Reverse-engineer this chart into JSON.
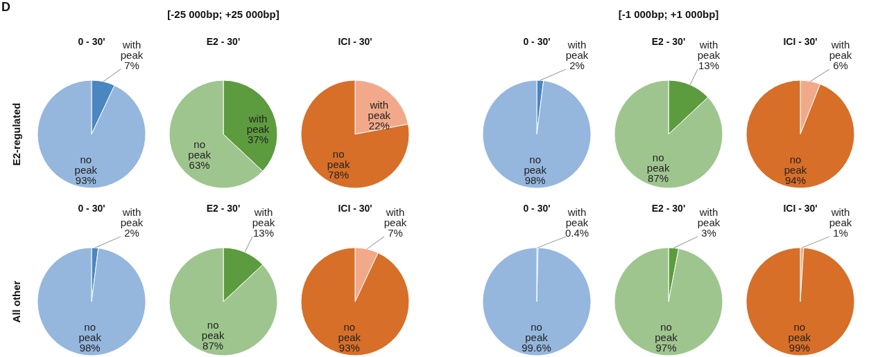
{
  "chart_data": [
    {
      "type": "pie",
      "title": "0 - 30'",
      "ylabel": "E2-regulated",
      "annotations": [
        "D"
      ],
      "categories": [
        "with peak",
        "no peak"
      ],
      "values": [
        7,
        93
      ],
      "value_labels": [
        "7%",
        "93%"
      ],
      "colors": [
        "#4a86c0",
        "#95b7de"
      ]
    },
    {
      "type": "pie",
      "title": "E2 - 30'",
      "subtitle": "[-25 000bp; +25 000bp]",
      "categories": [
        "with peak",
        "no peak"
      ],
      "values": [
        37,
        63
      ],
      "value_labels": [
        "37%",
        "63%"
      ],
      "colors": [
        "#5c9c3e",
        "#9fc58f"
      ]
    },
    {
      "type": "pie",
      "title": "ICI - 30'",
      "categories": [
        "with peak",
        "no peak"
      ],
      "values": [
        22,
        78
      ],
      "value_labels": [
        "22%",
        "78%"
      ],
      "colors": [
        "#f2a98a",
        "#d76f28"
      ]
    },
    {
      "type": "pie",
      "title": "0 - 30'",
      "categories": [
        "with peak",
        "no peak"
      ],
      "values": [
        2,
        98
      ],
      "value_labels": [
        "2%",
        "98%"
      ],
      "colors": [
        "#4a86c0",
        "#95b7de"
      ]
    },
    {
      "type": "pie",
      "title": "E2 - 30'",
      "subtitle": "[-1 000bp; +1 000bp]",
      "categories": [
        "with peak",
        "no peak"
      ],
      "values": [
        13,
        87
      ],
      "value_labels": [
        "13%",
        "87%"
      ],
      "colors": [
        "#5c9c3e",
        "#9fc58f"
      ]
    },
    {
      "type": "pie",
      "title": "ICI - 30'",
      "categories": [
        "with peak",
        "no peak"
      ],
      "values": [
        6,
        94
      ],
      "value_labels": [
        "6%",
        "94%"
      ],
      "colors": [
        "#f2a98a",
        "#d76f28"
      ]
    },
    {
      "type": "pie",
      "title": "0 - 30'",
      "ylabel": "All other",
      "categories": [
        "with peak",
        "no peak"
      ],
      "values": [
        2,
        98
      ],
      "value_labels": [
        "2%",
        "98%"
      ],
      "colors": [
        "#4a86c0",
        "#95b7de"
      ]
    },
    {
      "type": "pie",
      "title": "E2 - 30'",
      "categories": [
        "with peak",
        "no peak"
      ],
      "values": [
        13,
        87
      ],
      "value_labels": [
        "13%",
        "87%"
      ],
      "colors": [
        "#5c9c3e",
        "#9fc58f"
      ]
    },
    {
      "type": "pie",
      "title": "ICI - 30'",
      "categories": [
        "with peak",
        "no peak"
      ],
      "values": [
        7,
        93
      ],
      "value_labels": [
        "7%",
        "93%"
      ],
      "colors": [
        "#f2a98a",
        "#d76f28"
      ]
    },
    {
      "type": "pie",
      "title": "0 - 30'",
      "categories": [
        "with peak",
        "no peak"
      ],
      "values": [
        0.4,
        99.6
      ],
      "value_labels": [
        "0.4%",
        "99.6%"
      ],
      "colors": [
        "#4a86c0",
        "#95b7de"
      ]
    },
    {
      "type": "pie",
      "title": "E2 - 30'",
      "categories": [
        "with peak",
        "no peak"
      ],
      "values": [
        3,
        97
      ],
      "value_labels": [
        "3%",
        "97%"
      ],
      "colors": [
        "#5c9c3e",
        "#9fc58f"
      ]
    },
    {
      "type": "pie",
      "title": "ICI - 30'",
      "categories": [
        "with peak",
        "no peak"
      ],
      "values": [
        1,
        99
      ],
      "value_labels": [
        "1%",
        "99%"
      ],
      "colors": [
        "#f2a98a",
        "#d76f28"
      ]
    }
  ]
}
